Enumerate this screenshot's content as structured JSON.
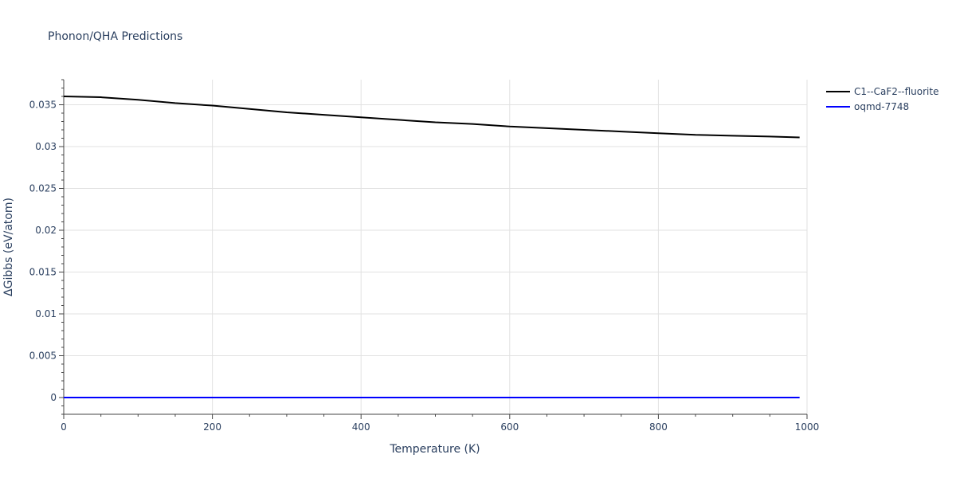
{
  "chart_data": {
    "type": "line",
    "title": "Phonon/QHA Predictions",
    "xlabel": "Temperature (K)",
    "ylabel": "ΔGibbs (eV/atom)",
    "xlim": [
      0,
      1000
    ],
    "ylim": [
      -0.002,
      0.038
    ],
    "x_ticks": [
      0,
      200,
      400,
      600,
      800,
      1000
    ],
    "x_tick_labels": [
      "0",
      "200",
      "400",
      "600",
      "800",
      "1000"
    ],
    "y_ticks": [
      0,
      0.005,
      0.01,
      0.015,
      0.02,
      0.025,
      0.03,
      0.035
    ],
    "y_tick_labels": [
      "0",
      "0.005",
      "0.01",
      "0.015",
      "0.02",
      "0.025",
      "0.03",
      "0.035"
    ],
    "grid": true,
    "legend_position": "top-right",
    "series": [
      {
        "name": "C1--CaF2--fluorite",
        "color": "#000000",
        "x": [
          0,
          50,
          100,
          150,
          200,
          250,
          300,
          350,
          400,
          450,
          500,
          550,
          600,
          650,
          700,
          750,
          800,
          850,
          900,
          950,
          990
        ],
        "y": [
          0.036,
          0.0359,
          0.0356,
          0.0352,
          0.0349,
          0.0345,
          0.0341,
          0.0338,
          0.0335,
          0.0332,
          0.0329,
          0.0327,
          0.0324,
          0.0322,
          0.032,
          0.0318,
          0.0316,
          0.0314,
          0.0313,
          0.0312,
          0.0311
        ]
      },
      {
        "name": "oqmd-7748",
        "color": "#0000ff",
        "x": [
          0,
          990
        ],
        "y": [
          0,
          0
        ]
      }
    ]
  }
}
